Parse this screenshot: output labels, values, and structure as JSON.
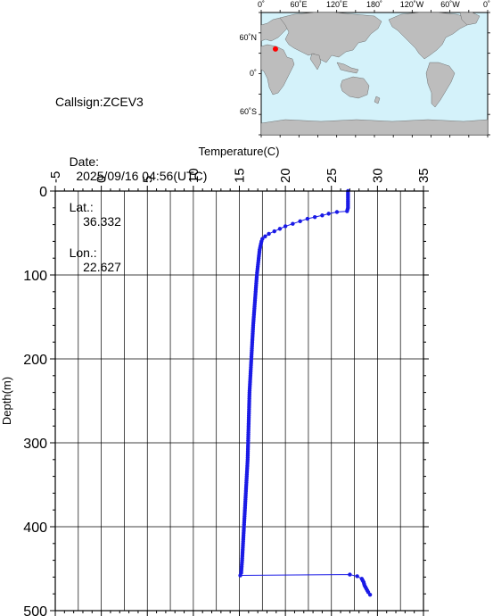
{
  "info": {
    "callsign": "Callsign:ZCEV3",
    "date_label": "Date:",
    "date_value": "2025/09/16 04:56(UTC)",
    "lat_label": "Lat.:",
    "lat_value": "36.332",
    "lon_label": "Lon.:",
    "lon_value": "22.627"
  },
  "map": {
    "lon_ticks": [
      "0˚",
      "60˚E",
      "120˚E",
      "180˚",
      "120˚W",
      "60˚W",
      "0˚"
    ],
    "lat_ticks": [
      "60˚N",
      "0˚",
      "60˚S"
    ],
    "marker_lon": 22.627,
    "marker_lat": 36.332,
    "ocean_color": "#d4f2fa",
    "land_color": "#bdbdbd",
    "marker_color": "#ff0000"
  },
  "chart_data": {
    "type": "scatter",
    "xlabel": "Temperature(C)",
    "ylabel": "Depth(m)",
    "xlim": [
      -5,
      35
    ],
    "ylim": [
      0,
      500
    ],
    "y_inverted": true,
    "x_axis_position": "top",
    "x_ticks": [
      -5,
      0,
      5,
      10,
      15,
      20,
      25,
      30,
      35
    ],
    "y_ticks": [
      0,
      100,
      200,
      300,
      400,
      500
    ],
    "grid": true,
    "series_color": "#1a1ae6",
    "series": [
      {
        "points": [
          [
            26.8,
            0
          ],
          [
            26.8,
            4
          ],
          [
            26.8,
            8
          ],
          [
            26.8,
            12
          ],
          [
            26.8,
            16
          ],
          [
            26.8,
            20
          ],
          [
            26.7,
            24
          ],
          [
            25.6,
            25
          ],
          [
            24.7,
            27
          ],
          [
            24.0,
            29
          ],
          [
            23.2,
            31
          ],
          [
            22.4,
            33
          ],
          [
            21.6,
            36
          ],
          [
            20.8,
            39
          ],
          [
            20.0,
            42
          ],
          [
            19.4,
            45
          ],
          [
            18.8,
            48
          ],
          [
            18.2,
            51
          ],
          [
            17.8,
            54
          ],
          [
            17.5,
            57
          ],
          [
            17.4,
            60
          ],
          [
            17.3,
            65
          ],
          [
            17.2,
            70
          ],
          [
            17.1,
            80
          ],
          [
            17.0,
            90
          ],
          [
            16.9,
            100
          ],
          [
            16.8,
            115
          ],
          [
            16.7,
            130
          ],
          [
            16.6,
            145
          ],
          [
            16.5,
            160
          ],
          [
            16.4,
            180
          ],
          [
            16.3,
            200
          ],
          [
            16.2,
            220
          ],
          [
            16.1,
            240
          ],
          [
            16.05,
            260
          ],
          [
            16.0,
            280
          ],
          [
            15.95,
            300
          ],
          [
            15.9,
            320
          ],
          [
            15.8,
            340
          ],
          [
            15.7,
            360
          ],
          [
            15.6,
            380
          ],
          [
            15.5,
            400
          ],
          [
            15.4,
            420
          ],
          [
            15.3,
            440
          ],
          [
            15.2,
            455
          ],
          [
            15.1,
            458
          ],
          [
            27.0,
            457
          ],
          [
            27.8,
            459
          ],
          [
            28.3,
            462
          ],
          [
            28.5,
            466
          ],
          [
            28.6,
            470
          ],
          [
            28.8,
            474
          ],
          [
            29.0,
            478
          ],
          [
            29.2,
            481
          ]
        ]
      }
    ]
  }
}
